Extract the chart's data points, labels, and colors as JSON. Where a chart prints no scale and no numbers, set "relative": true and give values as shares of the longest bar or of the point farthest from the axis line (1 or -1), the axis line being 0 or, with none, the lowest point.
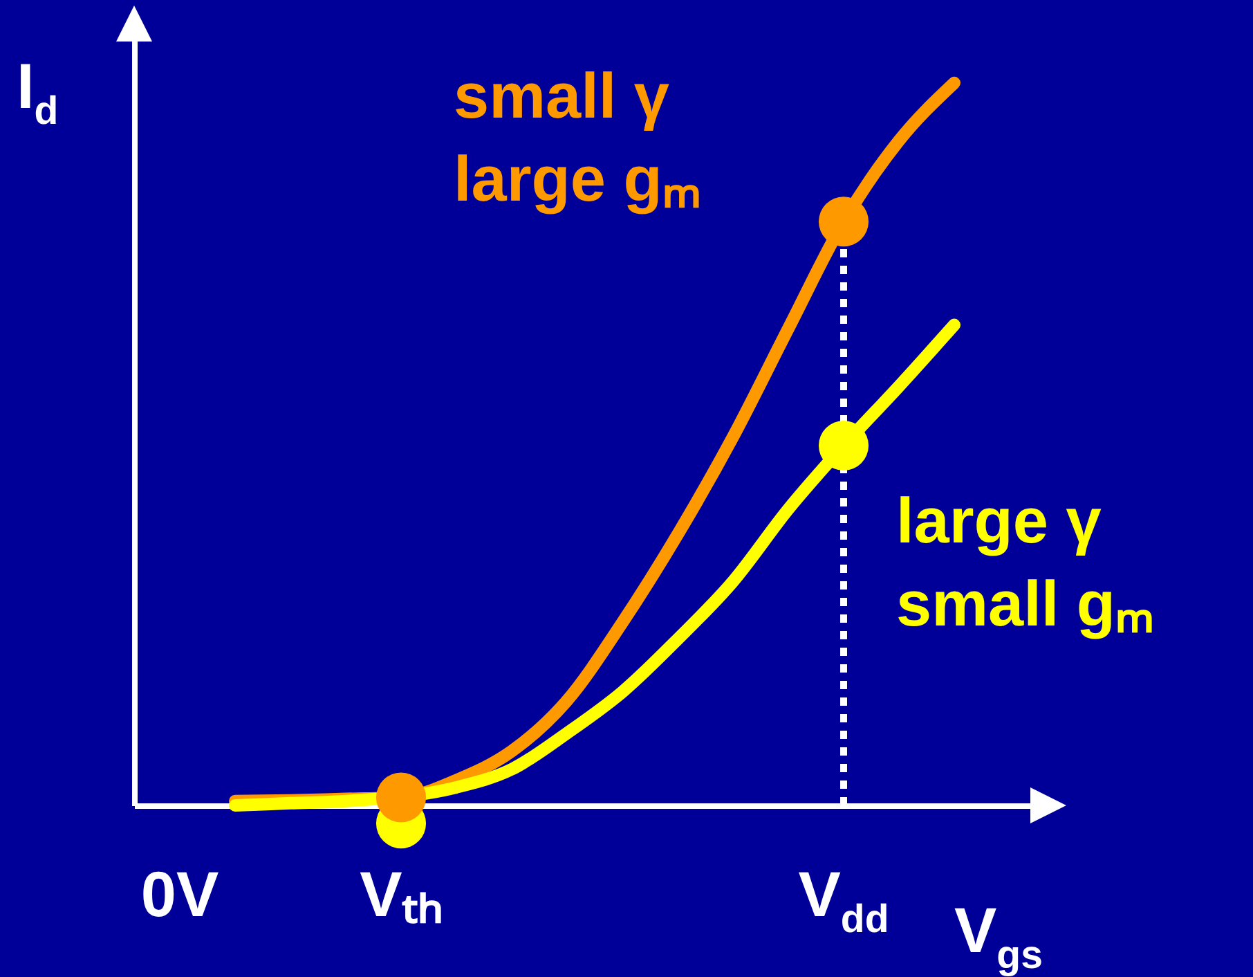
{
  "chart_data": {
    "type": "line",
    "relative": true,
    "xlabel": "V$_{gs}$",
    "ylabel": "I$_{d}$",
    "categories": [
      "0V",
      null,
      null,
      null,
      "Vₜₕ",
      null,
      null,
      null,
      null,
      null,
      null,
      null,
      "V$_{dd}$",
      null,
      null
    ],
    "grid": false,
    "legend": false,
    "series": [
      {
        "name": "small γ\nlarge gₘ",
        "color": "#ff9900",
        "values": [
          null,
          0.006,
          0.007,
          0.009,
          0.011,
          0.035,
          0.075,
          0.145,
          0.253,
          0.375,
          0.51,
          0.66,
          0.808,
          0.92,
          1
        ]
      },
      {
        "name": "large γ\nsmall gₘ",
        "color": "#ffff00",
        "values": [
          null,
          0,
          0.003,
          0.006,
          null,
          0.025,
          0.05,
          0.1,
          0.157,
          0.23,
          0.31,
          0.41,
          0.498,
          0.58,
          0.665
        ]
      },
      {
        "type": "scatter",
        "color": "#ffff00",
        "values": [
          null,
          null,
          null,
          null,
          -0.025,
          null,
          null,
          null,
          null,
          null,
          null,
          null,
          0.498,
          null,
          null
        ]
      },
      {
        "type": "scatter",
        "color": "#ff9900",
        "values": [
          null,
          null,
          null,
          null,
          0.011,
          null,
          null,
          null,
          null,
          null,
          null,
          null,
          0.808,
          null,
          null
        ]
      }
    ],
    "ref_lines": [
      {
        "axis": "x",
        "value": "V$_{dd}$",
        "color": "#ffffff",
        "line_style": "dotted"
      }
    ]
  }
}
